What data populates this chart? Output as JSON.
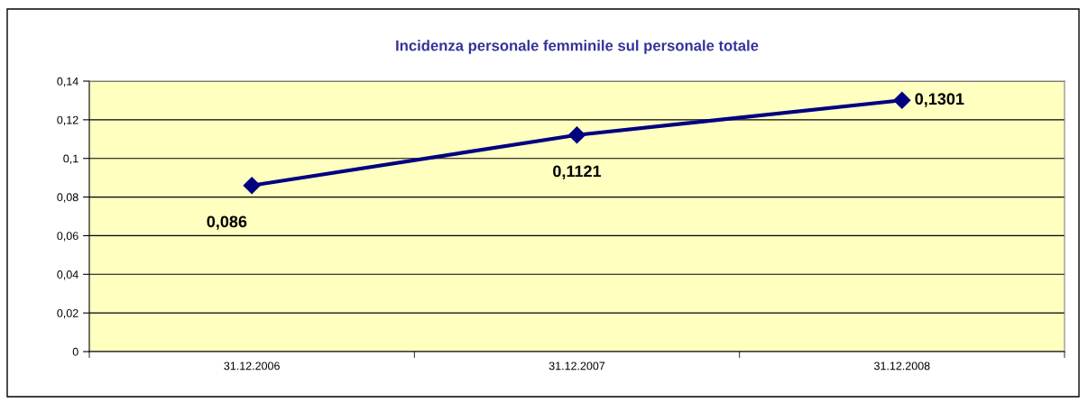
{
  "chart_data": {
    "type": "line",
    "title": "Incidenza personale femminile sul personale totale",
    "categories": [
      "31.12.2006",
      "31.12.2007",
      "31.12.2008"
    ],
    "series": [
      {
        "color": "#000080",
        "values": [
          0.086,
          0.1121,
          0.1301
        ],
        "value_labels": [
          "0,086",
          "0,1121",
          "0,1301"
        ]
      }
    ],
    "ylim": [
      0,
      0.14
    ],
    "yticks": [
      {
        "value": 0,
        "label": "0"
      },
      {
        "value": 0.02,
        "label": "0,02"
      },
      {
        "value": 0.04,
        "label": "0,04"
      },
      {
        "value": 0.06,
        "label": "0,06"
      },
      {
        "value": 0.08,
        "label": "0,08"
      },
      {
        "value": 0.1,
        "label": "0,1"
      },
      {
        "value": 0.12,
        "label": "0,12"
      },
      {
        "value": 0.14,
        "label": "0,14"
      }
    ],
    "grid": "y",
    "marker": "diamond",
    "line_style": "solid"
  }
}
